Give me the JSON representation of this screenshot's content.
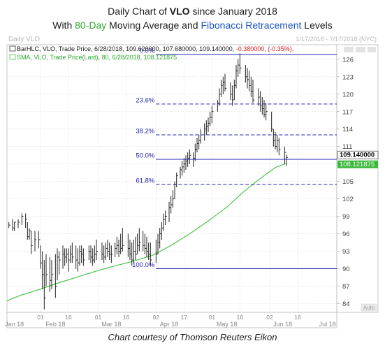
{
  "title": {
    "line1_prefix": "Daily Chart of ",
    "line1_ticker": "VLO",
    "line1_suffix": " since January 2018",
    "line2_prefix": "With ",
    "line2_ma": "80-Day",
    "line2_middle": " Moving Average and ",
    "line2_fib": "Fibonacci Retracement",
    "line2_suffix": " Levels"
  },
  "caption": "Chart courtesy of Thomson Reuters Eikon",
  "chart_data": {
    "type": "line",
    "watermark": "Daily VLO",
    "date_range_label": "1/17/2018 - 7/17/2018 (NYC)",
    "legend": {
      "bar_prefix": "BarHLC, VLO, Trade Price, 6/28/2018, 109.620000, 107.680000, 109.140000, ",
      "bar_change": "-0.380000, (-0.35%),",
      "sma": "SMA, VLO, Trade Price(Last), 80, 6/28/2018, 108.121875"
    },
    "y_ticks": [
      84,
      87,
      90,
      93,
      96,
      99,
      102,
      105,
      108,
      111,
      114,
      117,
      120,
      123,
      126
    ],
    "y_tick_labels": [
      "84",
      "87",
      "90",
      "93",
      "96",
      "99",
      "102",
      "105",
      "",
      "111",
      "114",
      "117",
      "120",
      "123",
      "126"
    ],
    "ylim": [
      82.5,
      128.5
    ],
    "x_day_ticks": [
      {
        "day": 0,
        "label": "01"
      },
      {
        "day": 15,
        "label": "16"
      },
      {
        "day": 31,
        "label": "01"
      },
      {
        "day": 46,
        "label": "16"
      },
      {
        "day": 62,
        "label": "02"
      },
      {
        "day": 77,
        "label": "17"
      },
      {
        "day": 92,
        "label": "01"
      },
      {
        "day": 107,
        "label": "16"
      },
      {
        "day": 123,
        "label": "02"
      },
      {
        "day": 138,
        "label": "16"
      }
    ],
    "x_month_labels": [
      {
        "day": -14,
        "label": "Jan 18"
      },
      {
        "day": 8,
        "label": "Feb 18"
      },
      {
        "day": 38,
        "label": "Mar 18"
      },
      {
        "day": 69,
        "label": "Apr 18"
      },
      {
        "day": 100,
        "label": "May 18"
      },
      {
        "day": 130,
        "label": "Jun 18"
      },
      {
        "day": 154,
        "label": "Jul 18"
      }
    ],
    "xlim": [
      -18,
      159
    ],
    "fib_levels": [
      {
        "label": "0.0%",
        "value": 126.8,
        "style": "solid"
      },
      {
        "label": "23.6%",
        "value": 118.3,
        "style": "dashed"
      },
      {
        "label": "38.2%",
        "value": 113.0,
        "style": "dashed"
      },
      {
        "label": "50.0%",
        "value": 108.8,
        "style": "solid"
      },
      {
        "label": "61.8%",
        "value": 104.5,
        "style": "dashed"
      },
      {
        "label": "100.0%",
        "value": 90.0,
        "style": "solid"
      }
    ],
    "last_price": {
      "value": 109.14,
      "label": "109.140000"
    },
    "sma_last": {
      "value": 108.121875,
      "label": "108.121875"
    },
    "auto_label": "Auto",
    "bars": [
      [
        -17,
        98,
        97,
        97.5
      ],
      [
        -15,
        98.5,
        96.5,
        97
      ],
      [
        -14,
        98,
        96.5,
        98
      ],
      [
        -12,
        98.5,
        97,
        98
      ],
      [
        -10,
        99.5,
        97.5,
        99
      ],
      [
        -8,
        99.5,
        97,
        98.5
      ],
      [
        -7,
        98,
        95,
        95.5
      ],
      [
        -6,
        97,
        95,
        96.5
      ],
      [
        -5,
        96.5,
        92.5,
        94
      ],
      [
        -3,
        96.5,
        93,
        95
      ],
      [
        -1,
        96.5,
        93.5,
        95
      ],
      [
        0,
        94,
        90,
        91
      ],
      [
        1,
        93,
        86.5,
        89
      ],
      [
        2,
        91.5,
        83,
        85
      ],
      [
        3,
        92.5,
        87,
        89
      ],
      [
        5,
        92,
        86,
        88
      ],
      [
        6,
        91.5,
        86.5,
        89
      ],
      [
        8,
        92.5,
        85,
        87
      ],
      [
        9,
        93.5,
        88,
        92
      ],
      [
        10,
        93,
        89,
        91.5
      ],
      [
        12,
        94,
        90,
        92.5
      ],
      [
        13,
        93.5,
        90.5,
        92
      ],
      [
        14,
        93.5,
        91,
        92.5
      ],
      [
        15,
        93.5,
        89.5,
        91.5
      ],
      [
        16,
        94,
        91,
        92.5
      ],
      [
        17,
        94.5,
        91,
        92
      ],
      [
        19,
        94,
        90,
        91.5
      ],
      [
        20,
        93.5,
        89.5,
        91
      ],
      [
        21,
        94,
        90.5,
        93
      ],
      [
        22,
        94,
        91,
        92.5
      ],
      [
        23,
        93.5,
        90.5,
        91.5
      ],
      [
        26,
        94,
        91.5,
        93
      ],
      [
        27,
        94,
        91,
        92
      ],
      [
        28,
        93.5,
        90.5,
        91.5
      ],
      [
        29,
        94,
        91,
        92.5
      ],
      [
        30,
        95,
        91.5,
        93
      ],
      [
        33,
        94.5,
        91.5,
        92.5
      ],
      [
        34,
        94,
        91,
        92
      ],
      [
        35,
        94.5,
        91.5,
        93.5
      ],
      [
        36,
        95,
        92,
        93
      ],
      [
        37,
        94.5,
        91.5,
        92.5
      ],
      [
        38,
        94,
        91,
        92.5
      ],
      [
        40,
        94.5,
        92,
        93.5
      ],
      [
        41,
        95.5,
        92.5,
        94
      ],
      [
        42,
        95,
        92,
        93
      ],
      [
        43,
        96,
        92.5,
        93.5
      ],
      [
        44,
        97,
        93,
        94
      ],
      [
        47,
        96,
        92,
        93.5
      ],
      [
        48,
        95,
        91.5,
        92.5
      ],
      [
        49,
        94.5,
        90.5,
        91.5
      ],
      [
        50,
        95,
        91,
        93
      ],
      [
        51,
        95.5,
        91.5,
        92.5
      ],
      [
        52,
        96,
        92.5,
        94
      ],
      [
        53,
        97,
        93,
        94.5
      ],
      [
        55,
        96.5,
        93,
        94
      ],
      [
        56,
        96,
        92.5,
        93.5
      ],
      [
        57,
        95.5,
        92,
        93
      ],
      [
        58,
        94.5,
        91.5,
        92.5
      ],
      [
        59,
        94.5,
        90.5,
        91.5
      ],
      [
        62,
        95,
        91,
        92.5
      ],
      [
        63,
        96,
        92.5,
        94.5
      ],
      [
        64,
        97,
        93.5,
        96
      ],
      [
        65,
        98,
        95,
        97
      ],
      [
        66,
        99.5,
        96.5,
        98.5
      ],
      [
        67,
        100,
        97.5,
        99
      ],
      [
        69,
        101.5,
        98,
        100.5
      ],
      [
        70,
        102.5,
        99.5,
        101
      ],
      [
        71,
        103.5,
        100.5,
        102
      ],
      [
        72,
        105,
        102,
        104.5
      ],
      [
        73,
        106.5,
        104,
        106
      ],
      [
        75,
        107.5,
        105.5,
        107
      ],
      [
        76,
        108.5,
        106,
        107.5
      ],
      [
        77,
        109,
        106.5,
        108
      ],
      [
        78,
        109.5,
        107,
        108.5
      ],
      [
        79,
        110,
        107.5,
        109
      ],
      [
        80,
        110.5,
        108,
        109.5
      ],
      [
        82,
        110,
        107.5,
        109
      ],
      [
        83,
        111.5,
        108.5,
        110.5
      ],
      [
        84,
        112.5,
        110,
        111.5
      ],
      [
        85,
        113,
        110.5,
        112
      ],
      [
        86,
        114,
        111.5,
        113
      ],
      [
        88,
        115,
        112,
        114
      ],
      [
        89,
        115.5,
        113,
        114.5
      ],
      [
        90,
        116,
        113.5,
        115
      ],
      [
        91,
        117,
        114.5,
        116
      ],
      [
        92,
        118,
        115,
        117
      ],
      [
        95,
        119,
        117,
        118.5
      ],
      [
        96,
        121,
        118,
        120
      ],
      [
        97,
        122.5,
        119.5,
        121.5
      ],
      [
        98,
        123,
        120,
        122
      ],
      [
        99,
        123.5,
        120.5,
        121
      ],
      [
        102,
        122,
        119,
        120
      ],
      [
        103,
        121.5,
        118,
        119
      ],
      [
        104,
        122.5,
        119,
        121.5
      ],
      [
        105,
        125,
        121,
        124
      ],
      [
        106,
        126,
        123,
        125
      ],
      [
        107,
        127,
        123.5,
        124.5
      ],
      [
        110,
        125,
        122,
        123
      ],
      [
        111,
        124.5,
        121,
        122.5
      ],
      [
        112,
        124,
        120.5,
        121.5
      ],
      [
        113,
        123,
        119.5,
        120.5
      ],
      [
        114,
        122.5,
        118.5,
        119
      ],
      [
        117,
        121,
        118,
        119.5
      ],
      [
        118,
        120.5,
        117,
        118
      ],
      [
        119,
        119.5,
        116.5,
        117.5
      ],
      [
        120,
        119,
        116,
        116.5
      ],
      [
        121,
        118.5,
        115.5,
        117
      ],
      [
        124,
        117,
        113.5,
        114
      ],
      [
        125,
        114,
        111,
        112
      ],
      [
        126,
        113.5,
        110.5,
        111
      ],
      [
        127,
        113,
        110,
        112
      ],
      [
        128,
        112.5,
        109.5,
        110.5
      ],
      [
        131,
        111,
        108,
        110
      ],
      [
        132,
        109.62,
        107.68,
        109.14
      ]
    ],
    "sma": [
      [
        -18,
        84.5
      ],
      [
        -10,
        85.5
      ],
      [
        0,
        86.5
      ],
      [
        10,
        87.6
      ],
      [
        20,
        88.6
      ],
      [
        30,
        89.6
      ],
      [
        40,
        90.5
      ],
      [
        50,
        91.3
      ],
      [
        60,
        92.3
      ],
      [
        70,
        94.0
      ],
      [
        80,
        96.0
      ],
      [
        90,
        98.2
      ],
      [
        100,
        100.6
      ],
      [
        110,
        103.5
      ],
      [
        120,
        106.0
      ],
      [
        126,
        107.4
      ],
      [
        132,
        108.12
      ]
    ]
  }
}
